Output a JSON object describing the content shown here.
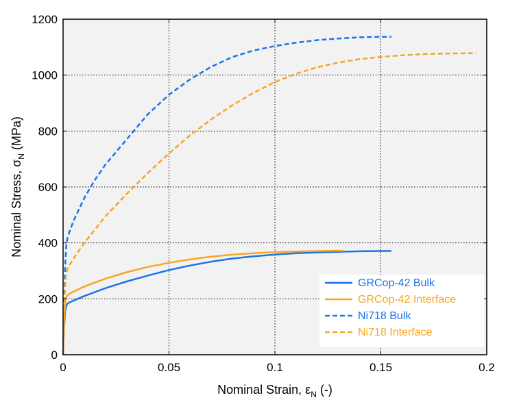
{
  "chart_data": {
    "type": "line",
    "xlabel": "Nominal Strain, εN (-)",
    "ylabel": "Nominal Stress, σN (MPa)",
    "xlabel_parts": {
      "prefix": "Nominal Strain, ",
      "symbol": "ε",
      "sub": "N",
      "suffix": " (-)"
    },
    "ylabel_parts": {
      "prefix": "Nominal Stress, ",
      "symbol": "σ",
      "sub": "N",
      "suffix": " (MPa)"
    },
    "xlim": [
      0,
      0.2
    ],
    "ylim": [
      0,
      1200
    ],
    "xticks": [
      0,
      0.05,
      0.1,
      0.15,
      0.2
    ],
    "xtick_labels": [
      "0",
      "0.05",
      "0.1",
      "0.15",
      "0.2"
    ],
    "yticks": [
      0,
      200,
      400,
      600,
      800,
      1000,
      1200
    ],
    "ytick_labels": [
      "0",
      "200",
      "400",
      "600",
      "800",
      "1000",
      "1200"
    ],
    "grid": true,
    "grid_style": "dotted",
    "plot_background": "#f2f2f2",
    "legend_position": "bottom-right",
    "colors": {
      "blue": "#1a73e8",
      "orange": "#f5a623"
    },
    "series": [
      {
        "name": "GRCop-42 Bulk",
        "color": "#1a73e8",
        "linestyle": "solid",
        "x": [
          0,
          0.0005,
          0.001,
          0.0015,
          0.002,
          0.003,
          0.005,
          0.01,
          0.02,
          0.03,
          0.04,
          0.05,
          0.06,
          0.07,
          0.08,
          0.09,
          0.1,
          0.11,
          0.12,
          0.13,
          0.14,
          0.15,
          0.155
        ],
        "y": [
          0,
          100,
          155,
          175,
          182,
          187,
          194,
          210,
          238,
          262,
          283,
          303,
          319,
          333,
          344,
          352,
          358,
          363,
          366,
          368,
          370,
          371,
          371
        ]
      },
      {
        "name": "GRCop-42 Interface",
        "color": "#f5a623",
        "linestyle": "solid",
        "x": [
          0,
          0.0005,
          0.001,
          0.0015,
          0.002,
          0.003,
          0.005,
          0.01,
          0.02,
          0.03,
          0.04,
          0.05,
          0.06,
          0.07,
          0.08,
          0.09,
          0.1,
          0.11,
          0.12,
          0.13,
          0.132
        ],
        "y": [
          0,
          120,
          185,
          205,
          212,
          218,
          226,
          244,
          272,
          295,
          314,
          329,
          341,
          351,
          358,
          363,
          367,
          369,
          371,
          372,
          372
        ]
      },
      {
        "name": "Ni718 Bulk",
        "color": "#1a73e8",
        "linestyle": "dashed",
        "x": [
          0,
          0.0005,
          0.001,
          0.0015,
          0.002,
          0.003,
          0.005,
          0.01,
          0.015,
          0.02,
          0.03,
          0.04,
          0.05,
          0.06,
          0.07,
          0.08,
          0.09,
          0.1,
          0.11,
          0.12,
          0.13,
          0.14,
          0.15,
          0.155
        ],
        "y": [
          0,
          180,
          320,
          390,
          415,
          440,
          480,
          560,
          625,
          680,
          770,
          860,
          930,
          985,
          1030,
          1065,
          1088,
          1104,
          1116,
          1125,
          1131,
          1135,
          1137,
          1137
        ]
      },
      {
        "name": "Ni718 Interface",
        "color": "#f5a623",
        "linestyle": "dashed",
        "x": [
          0,
          0.0005,
          0.001,
          0.0015,
          0.002,
          0.003,
          0.005,
          0.01,
          0.02,
          0.03,
          0.04,
          0.05,
          0.06,
          0.07,
          0.08,
          0.09,
          0.1,
          0.11,
          0.12,
          0.13,
          0.14,
          0.15,
          0.16,
          0.17,
          0.18,
          0.19,
          0.195
        ],
        "y": [
          0,
          150,
          250,
          290,
          305,
          320,
          345,
          400,
          495,
          575,
          650,
          720,
          785,
          842,
          893,
          937,
          975,
          1005,
          1028,
          1045,
          1057,
          1065,
          1071,
          1075,
          1077,
          1078,
          1078
        ]
      }
    ]
  }
}
